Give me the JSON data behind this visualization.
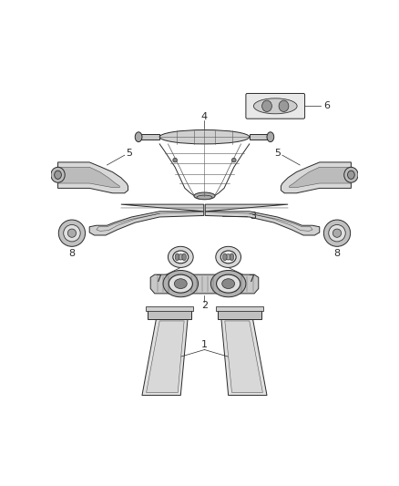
{
  "bg_color": "#ffffff",
  "line_color": "#2a2a2a",
  "figsize": [
    4.38,
    5.33
  ],
  "dpi": 100,
  "lw": 0.7,
  "gray": "#888888",
  "darkgray": "#555555"
}
